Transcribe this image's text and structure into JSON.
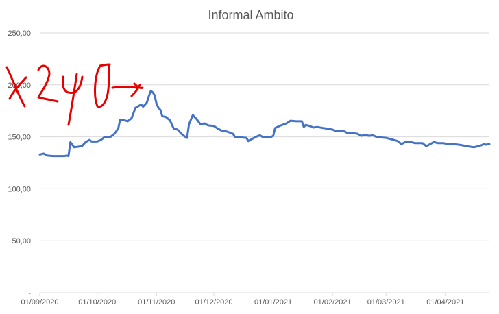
{
  "chart_data": {
    "type": "line",
    "title": "Informal Ambito",
    "xlabel": "",
    "ylabel": "",
    "ylim": [
      0,
      250
    ],
    "grid": true,
    "legend": "none",
    "y_ticks": [
      {
        "value": 0,
        "label": "-"
      },
      {
        "value": 50,
        "label": "50,00"
      },
      {
        "value": 100,
        "label": "100,00"
      },
      {
        "value": 150,
        "label": "150,00"
      },
      {
        "value": 200,
        "label": "200,00"
      },
      {
        "value": 250,
        "label": "250,00"
      }
    ],
    "x_ticks": [
      "01/09/2020",
      "01/10/2020",
      "01/11/2020",
      "01/12/2020",
      "01/01/2021",
      "01/02/2021",
      "01/03/2021",
      "01/04/2021"
    ],
    "x_range": [
      "2020-09-01",
      "2021-04-24"
    ],
    "series": [
      {
        "color": "#4472c4",
        "points": [
          [
            "2020-09-01",
            133
          ],
          [
            "2020-09-03",
            134
          ],
          [
            "2020-09-05",
            132
          ],
          [
            "2020-09-08",
            131.5
          ],
          [
            "2020-09-14",
            131.5
          ],
          [
            "2020-09-15",
            132
          ],
          [
            "2020-09-16",
            131.5
          ],
          [
            "2020-09-17",
            145
          ],
          [
            "2020-09-19",
            140
          ],
          [
            "2020-09-21",
            140.5
          ],
          [
            "2020-09-23",
            141
          ],
          [
            "2020-09-25",
            145
          ],
          [
            "2020-09-27",
            147
          ],
          [
            "2020-09-28",
            145.5
          ],
          [
            "2020-10-01",
            145.5
          ],
          [
            "2020-10-03",
            147
          ],
          [
            "2020-10-05",
            150
          ],
          [
            "2020-10-08",
            150
          ],
          [
            "2020-10-10",
            153
          ],
          [
            "2020-10-12",
            158
          ],
          [
            "2020-10-13",
            166.5
          ],
          [
            "2020-10-15",
            166
          ],
          [
            "2020-10-17",
            165
          ],
          [
            "2020-10-19",
            168
          ],
          [
            "2020-10-21",
            178
          ],
          [
            "2020-10-23",
            180
          ],
          [
            "2020-10-24",
            181
          ],
          [
            "2020-10-25",
            179
          ],
          [
            "2020-10-27",
            183
          ],
          [
            "2020-10-28",
            189
          ],
          [
            "2020-10-29",
            194
          ],
          [
            "2020-10-30",
            193
          ],
          [
            "2020-10-31",
            190
          ],
          [
            "2020-11-01",
            182
          ],
          [
            "2020-11-02",
            178
          ],
          [
            "2020-11-03",
            176
          ],
          [
            "2020-11-04",
            170
          ],
          [
            "2020-11-06",
            169
          ],
          [
            "2020-11-08",
            166
          ],
          [
            "2020-11-10",
            158
          ],
          [
            "2020-11-12",
            157
          ],
          [
            "2020-11-14",
            153
          ],
          [
            "2020-11-16",
            150
          ],
          [
            "2020-11-17",
            149
          ],
          [
            "2020-11-18",
            162
          ],
          [
            "2020-11-20",
            171
          ],
          [
            "2020-11-22",
            167
          ],
          [
            "2020-11-24",
            162
          ],
          [
            "2020-11-26",
            163
          ],
          [
            "2020-11-27",
            162
          ],
          [
            "2020-11-28",
            161
          ],
          [
            "2020-12-01",
            160.5
          ],
          [
            "2020-12-03",
            158
          ],
          [
            "2020-12-05",
            156
          ],
          [
            "2020-12-08",
            155
          ],
          [
            "2020-12-11",
            153
          ],
          [
            "2020-12-12",
            150
          ],
          [
            "2020-12-15",
            149.5
          ],
          [
            "2020-12-18",
            149
          ],
          [
            "2020-12-19",
            146
          ],
          [
            "2020-12-21",
            148
          ],
          [
            "2020-12-23",
            150
          ],
          [
            "2020-12-25",
            151.5
          ],
          [
            "2020-12-27",
            149.5
          ],
          [
            "2020-12-29",
            150
          ],
          [
            "2020-12-31",
            150
          ],
          [
            "2021-01-01",
            151
          ],
          [
            "2021-01-02",
            158.5
          ],
          [
            "2021-01-05",
            161
          ],
          [
            "2021-01-08",
            163
          ],
          [
            "2021-01-10",
            165.5
          ],
          [
            "2021-01-13",
            165
          ],
          [
            "2021-01-16",
            165
          ],
          [
            "2021-01-17",
            159.5
          ],
          [
            "2021-01-18",
            161.5
          ],
          [
            "2021-01-20",
            160.5
          ],
          [
            "2021-01-22",
            159
          ],
          [
            "2021-01-24",
            159.5
          ],
          [
            "2021-01-27",
            158.5
          ],
          [
            "2021-01-29",
            158
          ],
          [
            "2021-02-01",
            157
          ],
          [
            "2021-02-03",
            155.5
          ],
          [
            "2021-02-07",
            155.5
          ],
          [
            "2021-02-09",
            153.5
          ],
          [
            "2021-02-12",
            153.5
          ],
          [
            "2021-02-14",
            153
          ],
          [
            "2021-02-16",
            151
          ],
          [
            "2021-02-18",
            152
          ],
          [
            "2021-02-20",
            151
          ],
          [
            "2021-02-22",
            151.5
          ],
          [
            "2021-02-24",
            150
          ],
          [
            "2021-02-26",
            149.5
          ],
          [
            "2021-03-01",
            149
          ],
          [
            "2021-03-03",
            148
          ],
          [
            "2021-03-05",
            147
          ],
          [
            "2021-03-07",
            146
          ],
          [
            "2021-03-09",
            143
          ],
          [
            "2021-03-11",
            145
          ],
          [
            "2021-03-13",
            145.5
          ],
          [
            "2021-03-14",
            145
          ],
          [
            "2021-03-16",
            144
          ],
          [
            "2021-03-18",
            144
          ],
          [
            "2021-03-20",
            144
          ],
          [
            "2021-03-22",
            141
          ],
          [
            "2021-03-24",
            143
          ],
          [
            "2021-03-26",
            145
          ],
          [
            "2021-03-28",
            144
          ],
          [
            "2021-03-31",
            144
          ],
          [
            "2021-04-02",
            143
          ],
          [
            "2021-04-05",
            143
          ],
          [
            "2021-04-08",
            142.5
          ],
          [
            "2021-04-11",
            141.5
          ],
          [
            "2021-04-14",
            140.5
          ],
          [
            "2021-04-16",
            140
          ],
          [
            "2021-04-18",
            141
          ],
          [
            "2021-04-20",
            142
          ],
          [
            "2021-04-21",
            143
          ],
          [
            "2021-04-22",
            142.5
          ],
          [
            "2021-04-24",
            143
          ]
        ]
      }
    ],
    "annotations": [
      {
        "text": "X 240 ->",
        "kind": "handwritten",
        "color": "#e60000"
      }
    ]
  }
}
